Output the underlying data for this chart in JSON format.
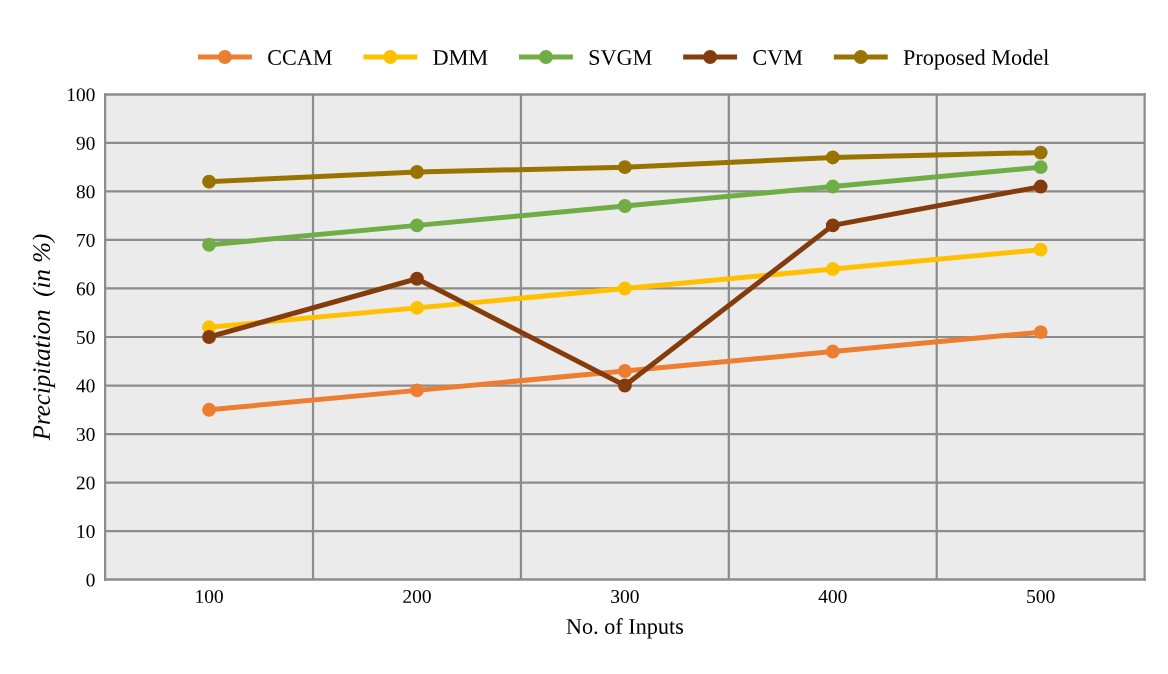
{
  "chart_data": {
    "type": "line",
    "xlabel": "No. of Inputs",
    "ylabel": "Precipitation  (in %)",
    "categories": [
      "100",
      "200",
      "300",
      "400",
      "500"
    ],
    "series": [
      {
        "name": "CCAM",
        "color": "#ed7d31",
        "values": [
          35,
          39,
          43,
          47,
          51
        ]
      },
      {
        "name": "DMM",
        "color": "#ffc000",
        "values": [
          52,
          56,
          60,
          64,
          68
        ]
      },
      {
        "name": "SVGM",
        "color": "#70ad47",
        "values": [
          69,
          73,
          77,
          81,
          85
        ]
      },
      {
        "name": "CVM",
        "color": "#843c0c",
        "values": [
          50,
          62,
          40,
          73,
          81
        ]
      },
      {
        "name": "Proposed Model",
        "color": "#997300",
        "values": [
          82,
          84,
          85,
          87,
          88
        ]
      }
    ],
    "ylim": [
      0,
      100
    ],
    "yticks": [
      0,
      10,
      20,
      30,
      40,
      50,
      60,
      70,
      80,
      90,
      100
    ],
    "grid": true,
    "legend": "top",
    "marker": "circle",
    "line_style": "solid"
  }
}
